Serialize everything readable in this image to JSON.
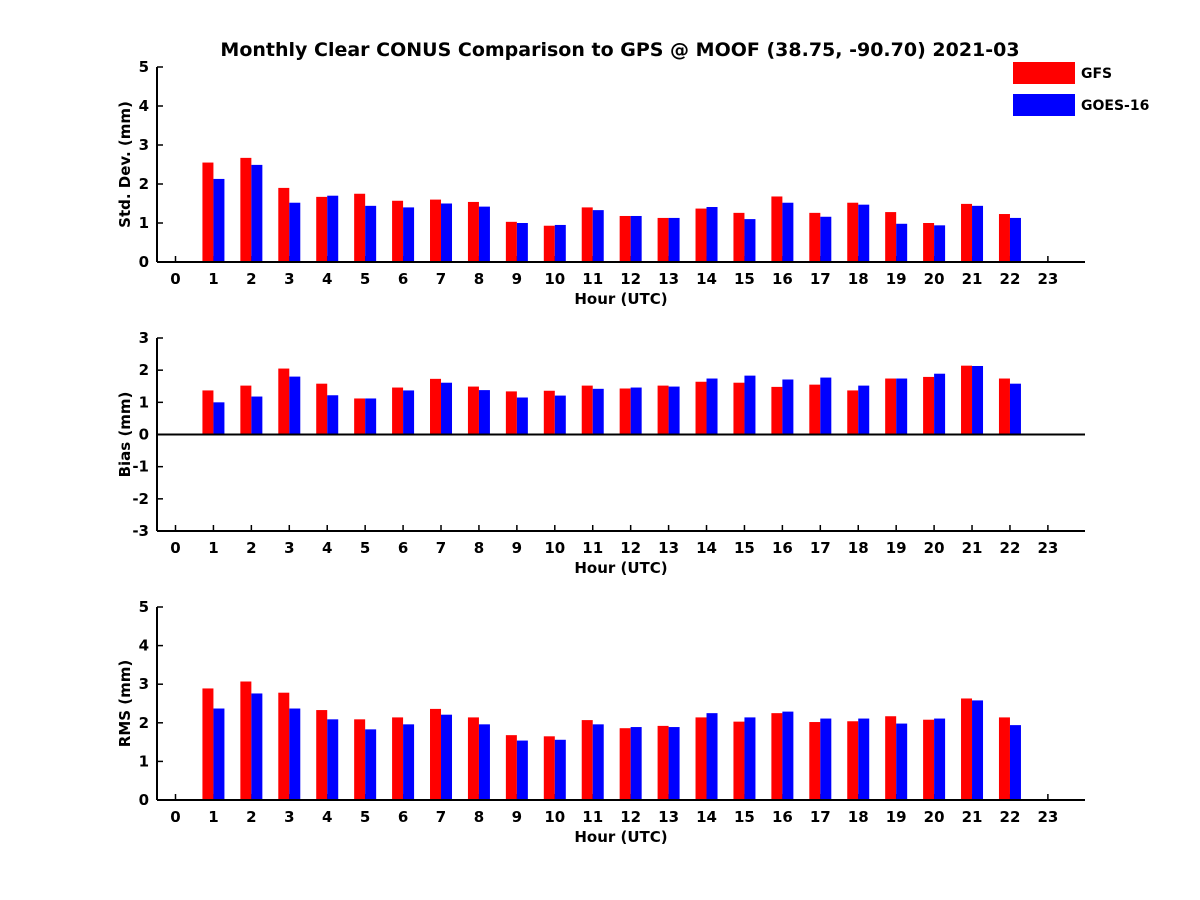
{
  "title": "Monthly Clear CONUS Comparison to GPS @ MOOF (38.75, -90.70) 2021-03",
  "colors": {
    "GFS": "#ff0000",
    "GOES-16": "#0000ff"
  },
  "legend": [
    {
      "name": "GFS",
      "color": "#ff0000"
    },
    {
      "name": "GOES-16",
      "color": "#0000ff"
    }
  ],
  "chart_data": [
    {
      "type": "bar",
      "xlabel": "Hour (UTC)",
      "ylabel": "Std. Dev. (mm)",
      "ylim": [
        0,
        5
      ],
      "yticks": [
        0,
        1,
        2,
        3,
        4,
        5
      ],
      "x": [
        0,
        1,
        2,
        3,
        4,
        5,
        6,
        7,
        8,
        9,
        10,
        11,
        12,
        13,
        14,
        15,
        16,
        17,
        18,
        19,
        20,
        21,
        22,
        23
      ],
      "xticks": [
        "0",
        "1",
        "2",
        "3",
        "4",
        "5",
        "6",
        "7",
        "8",
        "9",
        "10",
        "11",
        "12",
        "13",
        "14",
        "15",
        "16",
        "17",
        "18",
        "19",
        "20",
        "21",
        "22",
        "23"
      ],
      "legend_position": "top-right",
      "series": [
        {
          "name": "GFS",
          "values": [
            null,
            2.55,
            2.67,
            1.9,
            1.67,
            1.75,
            1.57,
            1.6,
            1.54,
            1.03,
            0.93,
            1.4,
            1.18,
            1.13,
            1.37,
            1.26,
            1.68,
            1.26,
            1.52,
            1.28,
            1.0,
            1.49,
            1.23,
            null
          ]
        },
        {
          "name": "GOES-16",
          "values": [
            null,
            2.13,
            2.49,
            1.52,
            1.7,
            1.44,
            1.4,
            1.5,
            1.42,
            1.0,
            0.95,
            1.33,
            1.18,
            1.13,
            1.41,
            1.1,
            1.52,
            1.16,
            1.47,
            0.98,
            0.94,
            1.44,
            1.13,
            null
          ]
        }
      ]
    },
    {
      "type": "bar",
      "xlabel": "Hour (UTC)",
      "ylabel": "Bias (mm)",
      "ylim": [
        -3,
        3
      ],
      "yticks": [
        -3,
        -2,
        -1,
        0,
        1,
        2,
        3
      ],
      "x": [
        0,
        1,
        2,
        3,
        4,
        5,
        6,
        7,
        8,
        9,
        10,
        11,
        12,
        13,
        14,
        15,
        16,
        17,
        18,
        19,
        20,
        21,
        22,
        23
      ],
      "xticks": [
        "0",
        "1",
        "2",
        "3",
        "4",
        "5",
        "6",
        "7",
        "8",
        "9",
        "10",
        "11",
        "12",
        "13",
        "14",
        "15",
        "16",
        "17",
        "18",
        "19",
        "20",
        "21",
        "22",
        "23"
      ],
      "series": [
        {
          "name": "GFS",
          "values": [
            null,
            1.37,
            1.52,
            2.05,
            1.58,
            1.12,
            1.46,
            1.73,
            1.49,
            1.34,
            1.36,
            1.52,
            1.43,
            1.52,
            1.64,
            1.61,
            1.48,
            1.55,
            1.37,
            1.74,
            1.79,
            2.14,
            1.74,
            null
          ]
        },
        {
          "name": "GOES-16",
          "values": [
            null,
            1.0,
            1.18,
            1.8,
            1.22,
            1.12,
            1.37,
            1.61,
            1.38,
            1.15,
            1.21,
            1.42,
            1.46,
            1.49,
            1.74,
            1.83,
            1.71,
            1.77,
            1.52,
            1.74,
            1.89,
            2.13,
            1.58,
            null
          ]
        }
      ]
    },
    {
      "type": "bar",
      "xlabel": "Hour (UTC)",
      "ylabel": "RMS (mm)",
      "ylim": [
        0,
        5
      ],
      "yticks": [
        0,
        1,
        2,
        3,
        4,
        5
      ],
      "x": [
        0,
        1,
        2,
        3,
        4,
        5,
        6,
        7,
        8,
        9,
        10,
        11,
        12,
        13,
        14,
        15,
        16,
        17,
        18,
        19,
        20,
        21,
        22,
        23
      ],
      "xticks": [
        "0",
        "1",
        "2",
        "3",
        "4",
        "5",
        "6",
        "7",
        "8",
        "9",
        "10",
        "11",
        "12",
        "13",
        "14",
        "15",
        "16",
        "17",
        "18",
        "19",
        "20",
        "21",
        "22",
        "23"
      ],
      "series": [
        {
          "name": "GFS",
          "values": [
            null,
            2.89,
            3.07,
            2.78,
            2.33,
            2.09,
            2.14,
            2.36,
            2.14,
            1.68,
            1.65,
            2.07,
            1.86,
            1.92,
            2.14,
            2.03,
            2.25,
            2.02,
            2.04,
            2.17,
            2.08,
            2.63,
            2.14,
            null
          ]
        },
        {
          "name": "GOES-16",
          "values": [
            null,
            2.37,
            2.76,
            2.37,
            2.09,
            1.83,
            1.96,
            2.21,
            1.96,
            1.54,
            1.56,
            1.96,
            1.89,
            1.89,
            2.25,
            2.14,
            2.29,
            2.11,
            2.11,
            1.98,
            2.11,
            2.58,
            1.94,
            null
          ]
        }
      ]
    }
  ]
}
